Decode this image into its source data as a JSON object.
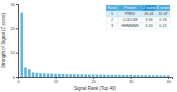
{
  "chart_data": {
    "type": "bar",
    "x_label": "Signal Rank (Top 40)",
    "y_label": "Strength of Signal (Z score)",
    "x": [
      1,
      2,
      3,
      4,
      5,
      6,
      7,
      8,
      9,
      10,
      11,
      12,
      13,
      14,
      15,
      16,
      17,
      18,
      19,
      20,
      21,
      22,
      23,
      24,
      25,
      26,
      27,
      28,
      29,
      30,
      31,
      32,
      33,
      34,
      35,
      36,
      37,
      38,
      39,
      40
    ],
    "values": [
      26.41,
      3.94,
      3.2,
      1.9,
      1.7,
      1.6,
      1.5,
      1.45,
      1.4,
      1.35,
      1.3,
      1.25,
      1.2,
      1.18,
      1.15,
      1.12,
      1.1,
      1.08,
      1.05,
      1.03,
      1.0,
      0.98,
      0.96,
      0.94,
      0.92,
      0.9,
      0.88,
      0.86,
      0.84,
      0.82,
      0.8,
      0.78,
      0.76,
      0.74,
      0.72,
      0.7,
      0.68,
      0.66,
      0.64,
      0.62
    ],
    "color": "#5bb8e0",
    "xlim": [
      0,
      41
    ],
    "xticks": [
      0,
      10,
      20,
      30,
      40
    ],
    "ylim": [
      0,
      30
    ],
    "yticks": [
      0,
      10,
      20,
      30
    ],
    "grid": false,
    "table": {
      "columns": [
        "Rank",
        "Protein",
        "Z score",
        "S score"
      ],
      "rows": [
        [
          "1",
          "PRR2",
          "26.41",
          "22.47"
        ],
        [
          "2",
          "CCDC88",
          "3.94",
          "0.74"
        ],
        [
          "3",
          "HMMMNN",
          "3.20",
          "0.12"
        ]
      ]
    }
  }
}
